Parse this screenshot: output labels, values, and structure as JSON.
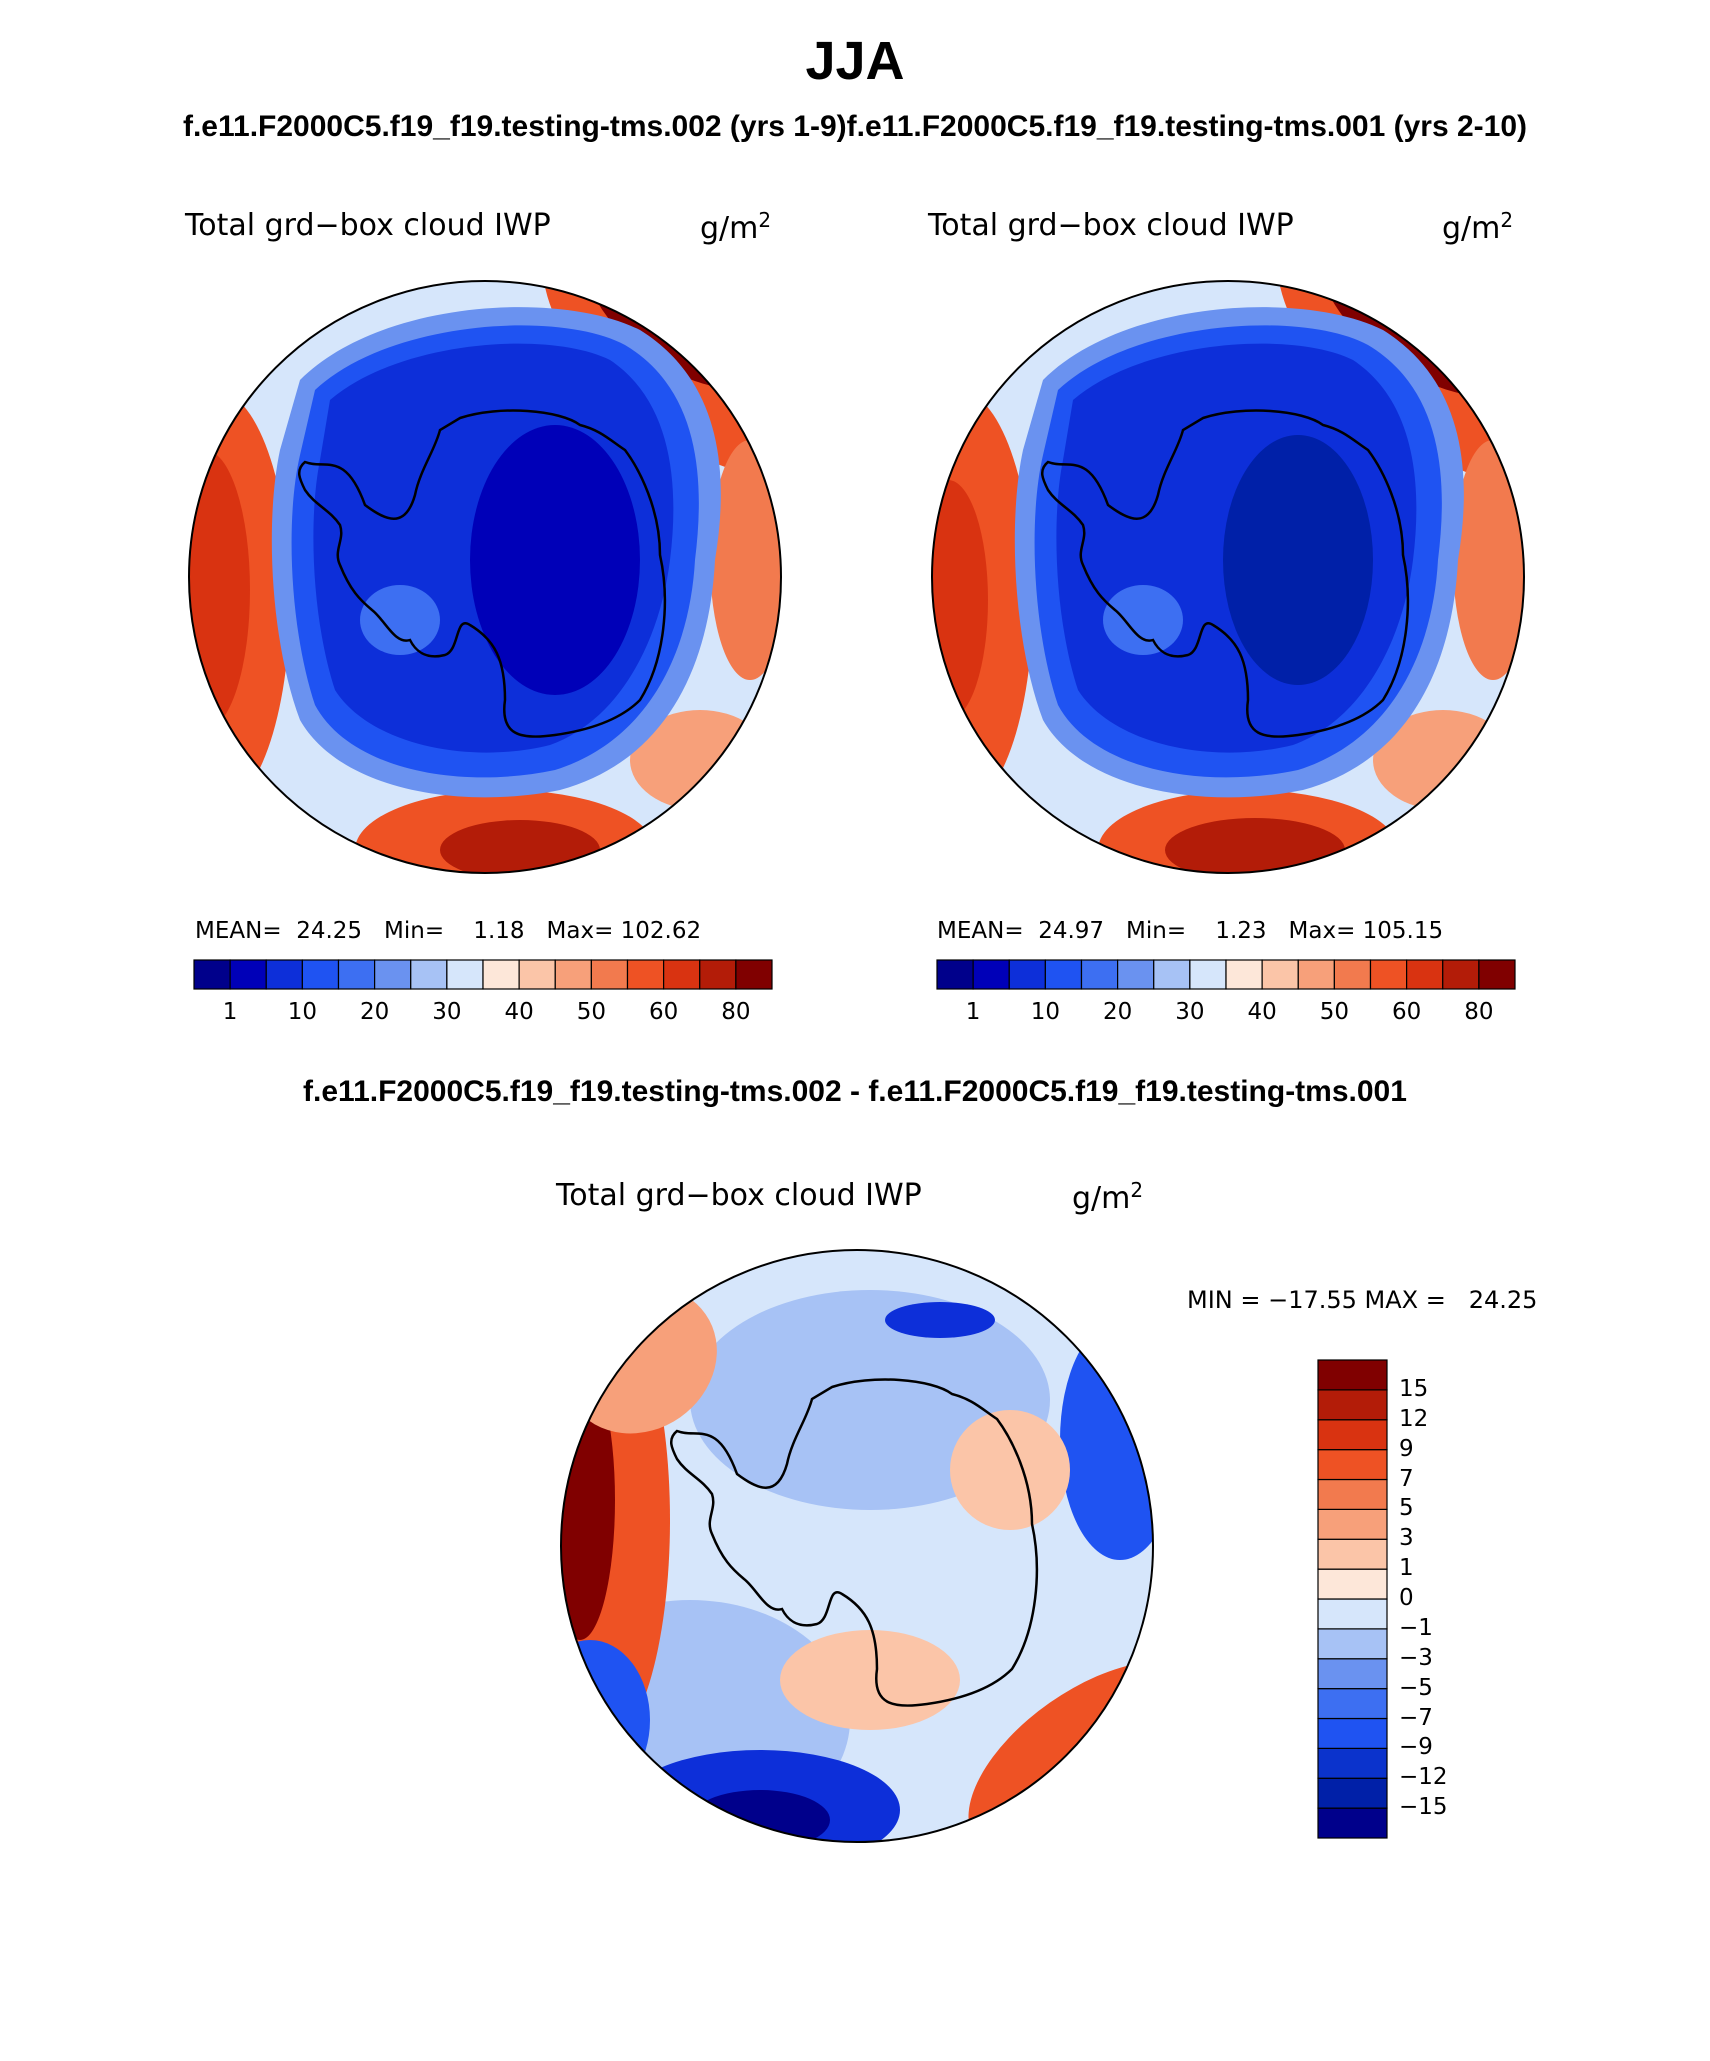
{
  "title": "JJA",
  "case_titles": {
    "left": "f.e11.F2000C5.f19_f19.testing-tms.002 (yrs 1-9)",
    "right": "f.e11.F2000C5.f19_f19.testing-tms.001 (yrs 2-10)"
  },
  "diff_title": "f.e11.F2000C5.f19_f19.testing-tms.002 - f.e11.F2000C5.f19_f19.testing-tms.001",
  "panels": [
    {
      "field": "Total grd−box cloud IWP",
      "unit": "g/m",
      "unit_exp": "2",
      "stats": {
        "mean_label": "MEAN=",
        "mean": "24.25",
        "min_label": "Min=",
        "min": "1.18",
        "max_label": "Max=",
        "max": "102.62"
      }
    },
    {
      "field": "Total grd−box cloud IWP",
      "unit": "g/m",
      "unit_exp": "2",
      "stats": {
        "mean_label": "MEAN=",
        "mean": "24.97",
        "min_label": "Min=",
        "min": "1.23",
        "max_label": "Max=",
        "max": "105.15"
      }
    }
  ],
  "abs_colorbar": {
    "colors": [
      "#00008b",
      "#0000b8",
      "#0d2fd9",
      "#1f53f2",
      "#3d6ff2",
      "#6a92f0",
      "#a7c2f5",
      "#d6e6fb",
      "#fde7d9",
      "#fbc5a8",
      "#f7a07a",
      "#f27a4e",
      "#ee5224",
      "#d93311",
      "#b31c08",
      "#800000"
    ],
    "labels": [
      "1",
      "10",
      "20",
      "30",
      "40",
      "50",
      "60",
      "80"
    ]
  },
  "diff_panel": {
    "field": "Total grd−box cloud IWP",
    "unit": "g/m",
    "unit_exp": "2",
    "minmax": "MIN = −17.55 MAX =   24.25"
  },
  "diff_colorbar": {
    "colors": [
      "#00008b",
      "#0020a8",
      "#0b33cc",
      "#1f53f2",
      "#3d6ff2",
      "#6a92f0",
      "#a7c2f5",
      "#d6e6fb",
      "#fde7d9",
      "#fbc5a8",
      "#f7a07a",
      "#f27a4e",
      "#ee5224",
      "#d93311",
      "#b31c08",
      "#800000"
    ],
    "labels": [
      "−15",
      "−12",
      "−9",
      "−7",
      "−5",
      "−3",
      "−1",
      "0",
      "1",
      "3",
      "5",
      "7",
      "9",
      "12",
      "15"
    ]
  }
}
